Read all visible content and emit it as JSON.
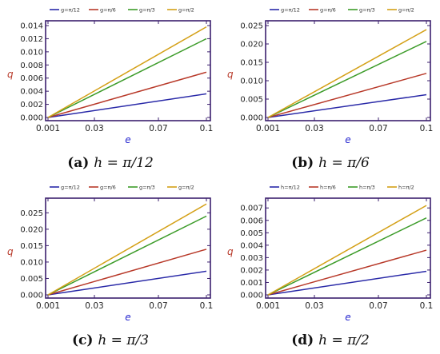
{
  "chart_data": [
    {
      "type": "line",
      "ylabel": "q",
      "xlabel": "e",
      "xlim": [
        0.001,
        0.1
      ],
      "xticks": [
        "0.001",
        "0.03",
        "0.07",
        "0.1"
      ],
      "ylim": [
        0,
        0.014
      ],
      "yticks": [
        "0.000",
        "0.002",
        "0.004",
        "0.006",
        "0.008",
        "0.010",
        "0.012",
        "0.014"
      ],
      "grid": false,
      "legend": "top",
      "series": [
        {
          "name": "g=π/12",
          "color": "#2a2aa8",
          "x": [
            0.001,
            0.1
          ],
          "y": [
            0.0,
            0.0036
          ]
        },
        {
          "name": "g=π/6",
          "color": "#b83a2a",
          "x": [
            0.001,
            0.1
          ],
          "y": [
            0.0,
            0.0069
          ]
        },
        {
          "name": "g=π/3",
          "color": "#3d9c2a",
          "x": [
            0.001,
            0.1
          ],
          "y": [
            0.0,
            0.012
          ]
        },
        {
          "name": "g=π/2",
          "color": "#d4a017",
          "x": [
            0.001,
            0.1
          ],
          "y": [
            0.0,
            0.0138
          ]
        }
      ],
      "caption": {
        "label": "(a)",
        "text": "h = π/12"
      }
    },
    {
      "type": "line",
      "ylabel": "q",
      "xlabel": "e",
      "xlim": [
        0.001,
        0.1
      ],
      "xticks": [
        "0.001",
        "0.03",
        "0.07",
        "0.1"
      ],
      "ylim": [
        0,
        0.025
      ],
      "yticks": [
        "0.000",
        "0.005",
        "0.010",
        "0.015",
        "0.020",
        "0.025"
      ],
      "grid": false,
      "legend": "top",
      "series": [
        {
          "name": "g=π/12",
          "color": "#2a2aa8",
          "x": [
            0.001,
            0.1
          ],
          "y": [
            0.0,
            0.0062
          ]
        },
        {
          "name": "g=π/6",
          "color": "#b83a2a",
          "x": [
            0.001,
            0.1
          ],
          "y": [
            0.0,
            0.012
          ]
        },
        {
          "name": "g=π/3",
          "color": "#3d9c2a",
          "x": [
            0.001,
            0.1
          ],
          "y": [
            0.0,
            0.0207
          ]
        },
        {
          "name": "g=π/2",
          "color": "#d4a017",
          "x": [
            0.001,
            0.1
          ],
          "y": [
            0.0,
            0.0239
          ]
        }
      ],
      "caption": {
        "label": "(b)",
        "text": "h = π/6"
      }
    },
    {
      "type": "line",
      "ylabel": "q",
      "xlabel": "e",
      "xlim": [
        0.001,
        0.1
      ],
      "xticks": [
        "0.001",
        "0.03",
        "0.07",
        "0.1"
      ],
      "ylim": [
        0,
        0.028
      ],
      "yticks": [
        "0.000",
        "0.005",
        "0.010",
        "0.015",
        "0.020",
        "0.025"
      ],
      "grid": false,
      "legend": "top",
      "series": [
        {
          "name": "g=π/12",
          "color": "#2a2aa8",
          "x": [
            0.001,
            0.1
          ],
          "y": [
            0.0,
            0.0072
          ]
        },
        {
          "name": "g=π/6",
          "color": "#b83a2a",
          "x": [
            0.001,
            0.1
          ],
          "y": [
            0.0,
            0.0139
          ]
        },
        {
          "name": "g=π/3",
          "color": "#3d9c2a",
          "x": [
            0.001,
            0.1
          ],
          "y": [
            0.0,
            0.024
          ]
        },
        {
          "name": "g=π/2",
          "color": "#d4a017",
          "x": [
            0.001,
            0.1
          ],
          "y": [
            0.0,
            0.0277
          ]
        }
      ],
      "caption": {
        "label": "(c)",
        "text": "h = π/3"
      }
    },
    {
      "type": "line",
      "ylabel": "q",
      "xlabel": "e",
      "xlim": [
        0.001,
        0.1
      ],
      "xticks": [
        "0.001",
        "0.03",
        "0.07",
        "0.1"
      ],
      "ylim": [
        0,
        0.0074
      ],
      "yticks": [
        "0.000",
        "0.001",
        "0.002",
        "0.003",
        "0.004",
        "0.005",
        "0.006",
        "0.007"
      ],
      "grid": false,
      "legend": "top",
      "series": [
        {
          "name": "h=π/12",
          "color": "#2a2aa8",
          "x": [
            0.001,
            0.1
          ],
          "y": [
            0.0,
            0.0019
          ]
        },
        {
          "name": "h=π/6",
          "color": "#b83a2a",
          "x": [
            0.001,
            0.1
          ],
          "y": [
            0.0,
            0.0036
          ]
        },
        {
          "name": "h=π/3",
          "color": "#3d9c2a",
          "x": [
            0.001,
            0.1
          ],
          "y": [
            0.0,
            0.0062
          ]
        },
        {
          "name": "h=π/2",
          "color": "#d4a017",
          "x": [
            0.001,
            0.1
          ],
          "y": [
            0.0,
            0.0072
          ]
        }
      ],
      "caption": {
        "label": "(d)",
        "text": "h = π/2"
      }
    }
  ],
  "style": {
    "frame_color": "#3b1f6e",
    "axis_label_q_color": "#b83a2a",
    "axis_label_e_color": "#2a2ad0"
  }
}
